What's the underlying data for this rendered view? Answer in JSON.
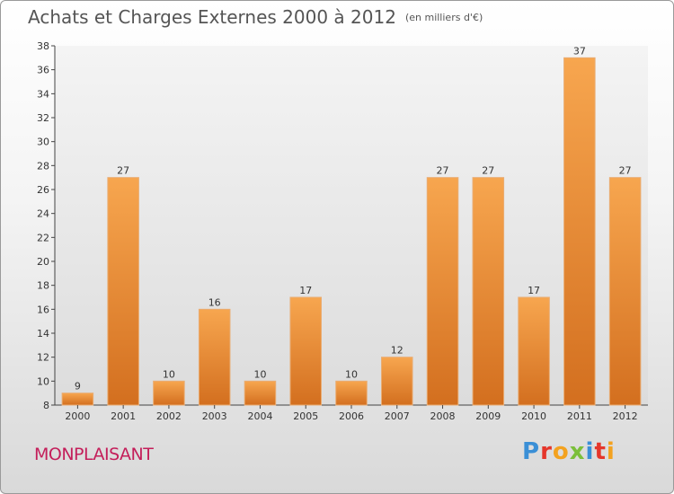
{
  "title": "Achats et Charges Externes 2000 à 2012",
  "subtitle": "(en milliers d'€)",
  "city": "MONPLAISANT",
  "logo_text": "Proxiti",
  "colors": {
    "bar": "#f0923a",
    "bar_dark": "#d36f1f",
    "city": "#c41e5a"
  },
  "chart_data": {
    "type": "bar",
    "categories": [
      "2000",
      "2001",
      "2002",
      "2003",
      "2004",
      "2005",
      "2006",
      "2007",
      "2008",
      "2009",
      "2010",
      "2011",
      "2012"
    ],
    "values": [
      9,
      27,
      10,
      16,
      10,
      17,
      10,
      12,
      27,
      27,
      17,
      37,
      27
    ],
    "ylim": [
      8,
      38
    ],
    "yticks": [
      8,
      10,
      12,
      14,
      16,
      18,
      20,
      22,
      24,
      26,
      28,
      30,
      32,
      34,
      36,
      38
    ],
    "grid": false
  }
}
